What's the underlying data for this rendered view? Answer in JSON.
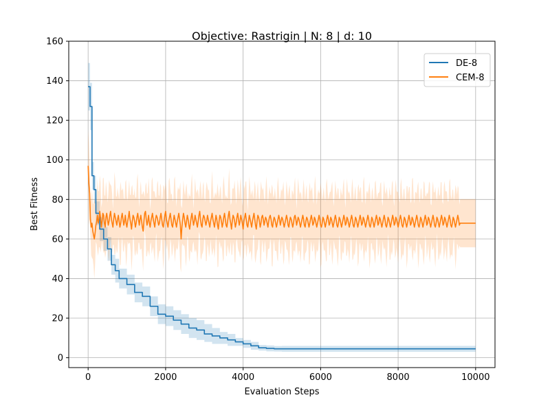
{
  "chart_data": {
    "type": "line",
    "title": "Objective: Rastrigin | N: 8 | d: 10",
    "xlabel": "Evaluation Steps",
    "ylabel": "Best Fitness",
    "xlim": [
      -500,
      10500
    ],
    "ylim": [
      -5,
      160
    ],
    "x_ticks": [
      0,
      2000,
      4000,
      6000,
      8000,
      10000
    ],
    "y_ticks": [
      0,
      20,
      40,
      60,
      80,
      100,
      120,
      140,
      160
    ],
    "grid": true,
    "legend_position": "top-right",
    "series": [
      {
        "name": "DE-8",
        "color": "#1f77b4",
        "band": "std",
        "x": [
          0,
          50,
          100,
          150,
          200,
          300,
          400,
          500,
          600,
          700,
          800,
          1000,
          1200,
          1400,
          1600,
          1800,
          2000,
          2200,
          2400,
          2600,
          2800,
          3000,
          3200,
          3400,
          3600,
          3800,
          4000,
          4200,
          4400,
          4600,
          4800,
          5000,
          5500,
          6000,
          7000,
          8000,
          9000,
          10000
        ],
        "y": [
          137,
          127,
          92,
          85,
          73,
          65,
          60,
          55,
          47,
          44,
          40,
          37,
          33,
          31,
          26,
          22,
          21,
          19,
          17,
          15,
          14,
          12,
          11,
          10,
          9,
          8,
          7,
          6,
          5,
          4.7,
          4.5,
          4.5,
          4.5,
          4.5,
          4.5,
          4.5,
          4.5,
          4.5
        ],
        "y_lower": [
          125,
          115,
          85,
          78,
          67,
          59,
          54,
          49,
          42,
          38,
          35,
          32,
          28,
          26,
          21,
          17,
          16,
          14,
          12,
          10,
          9,
          8,
          7,
          7,
          6,
          6,
          5,
          4,
          3.6,
          3.2,
          3.1,
          3,
          3,
          3,
          3,
          3,
          3,
          3
        ],
        "y_upper": [
          149,
          139,
          99,
          92,
          79,
          71,
          66,
          61,
          52,
          50,
          45,
          42,
          38,
          36,
          31,
          27,
          26,
          24,
          22,
          20,
          19,
          17,
          15,
          13,
          12,
          10,
          9,
          8,
          6.4,
          6.2,
          5.9,
          6,
          6,
          6,
          6,
          6,
          6,
          6
        ]
      },
      {
        "name": "CEM-8",
        "color": "#ff7f0e",
        "band": "std",
        "x_start": 0,
        "x_step": 20,
        "y": [
          97,
          88,
          83,
          70,
          66,
          68,
          64,
          62,
          60,
          63,
          67,
          69,
          72,
          68,
          70,
          74,
          71,
          66,
          69,
          73,
          72,
          68,
          66,
          71,
          73,
          70,
          67,
          69,
          72,
          74,
          70,
          68,
          66,
          70,
          73,
          71,
          69,
          67,
          70,
          72,
          69,
          66,
          68,
          71,
          73,
          70,
          67,
          69,
          72,
          68,
          66,
          69,
          71,
          74,
          70,
          68,
          65,
          69,
          72,
          71,
          69,
          66,
          68,
          71,
          73,
          70,
          67,
          70,
          72,
          69,
          66,
          64,
          69,
          73,
          74,
          70,
          67,
          69,
          72,
          68,
          66,
          69,
          71,
          73,
          70,
          68,
          66,
          70,
          72,
          71,
          69,
          67,
          68,
          71,
          73,
          70,
          67,
          66,
          69,
          72,
          74,
          70,
          68,
          66,
          69,
          71,
          73,
          70,
          67,
          66,
          69,
          72,
          70,
          68,
          66,
          69,
          71,
          73,
          70,
          67,
          60,
          66,
          70,
          73,
          71,
          68,
          66,
          69,
          72,
          70,
          67,
          65,
          68,
          71,
          73,
          70,
          67,
          69,
          72,
          70,
          68,
          66,
          69,
          72,
          74,
          70,
          67,
          66,
          70,
          72,
          71,
          69,
          67,
          69,
          72,
          70,
          68,
          66,
          69,
          71,
          73,
          70,
          68,
          66,
          69,
          72,
          70,
          67,
          65,
          69,
          72,
          71,
          69,
          66,
          68,
          71,
          73,
          70,
          67,
          66,
          69,
          72,
          74,
          70,
          68,
          65,
          69,
          72,
          71,
          69,
          66,
          68,
          71,
          73,
          70,
          67,
          69,
          72,
          70,
          68,
          65,
          69,
          71,
          73,
          70,
          67,
          66,
          69,
          72,
          70,
          68,
          66,
          69,
          71,
          73,
          70,
          67,
          65,
          69,
          72,
          71,
          69,
          66,
          68,
          71,
          72,
          70,
          67,
          69,
          71,
          70,
          68,
          66,
          69,
          71,
          72,
          70,
          67,
          66,
          69,
          71,
          70,
          68,
          66,
          68,
          70,
          72,
          70,
          67,
          69,
          71,
          70,
          68,
          66,
          68,
          70,
          72,
          70,
          67,
          66,
          69,
          71,
          70,
          68,
          66,
          68,
          71,
          72,
          70,
          67,
          69,
          71,
          70,
          68,
          66,
          68,
          70,
          72,
          70,
          67,
          66,
          69,
          71,
          70,
          68,
          66,
          68,
          70,
          72,
          70,
          67,
          68,
          71,
          70,
          68,
          66,
          68,
          70,
          72,
          70,
          67,
          66,
          68,
          71,
          70,
          68,
          66,
          68,
          70,
          72,
          70,
          67,
          68,
          71,
          70,
          68,
          66,
          68,
          70,
          72,
          70,
          67,
          66,
          68,
          71,
          70,
          68,
          66,
          68,
          70,
          72,
          70,
          67,
          68,
          71,
          70,
          68,
          66,
          68,
          70,
          72,
          70,
          67,
          66,
          68,
          71,
          70,
          68,
          66,
          68,
          70,
          72,
          70,
          67,
          68,
          71,
          70,
          68,
          66,
          68,
          70,
          72,
          70,
          67,
          66,
          68,
          71,
          70,
          68,
          66,
          68,
          70,
          72,
          70,
          67,
          68,
          71,
          70,
          68,
          66,
          68,
          70,
          72,
          70,
          67,
          66,
          68,
          71,
          70,
          68,
          66,
          68,
          70,
          72,
          70,
          67,
          68,
          71,
          70,
          68,
          66,
          68,
          70,
          72,
          70,
          67,
          66,
          68,
          71,
          70,
          68,
          66,
          68,
          70,
          72,
          70,
          67,
          68,
          71,
          70,
          68,
          66,
          68,
          70,
          72,
          70,
          67,
          66,
          68,
          71,
          70,
          68,
          66,
          68,
          70,
          72,
          70,
          67,
          68,
          71,
          70,
          68,
          66,
          68,
          70,
          72,
          70,
          67,
          66,
          68,
          71,
          70,
          68,
          66,
          68,
          70,
          72,
          70,
          67,
          68,
          71,
          70,
          68,
          66,
          68,
          70,
          72,
          70,
          67,
          66,
          68,
          71,
          70,
          68,
          66,
          68,
          70,
          72,
          70,
          67,
          68
        ],
        "band_halfwidth": 15
      }
    ]
  }
}
